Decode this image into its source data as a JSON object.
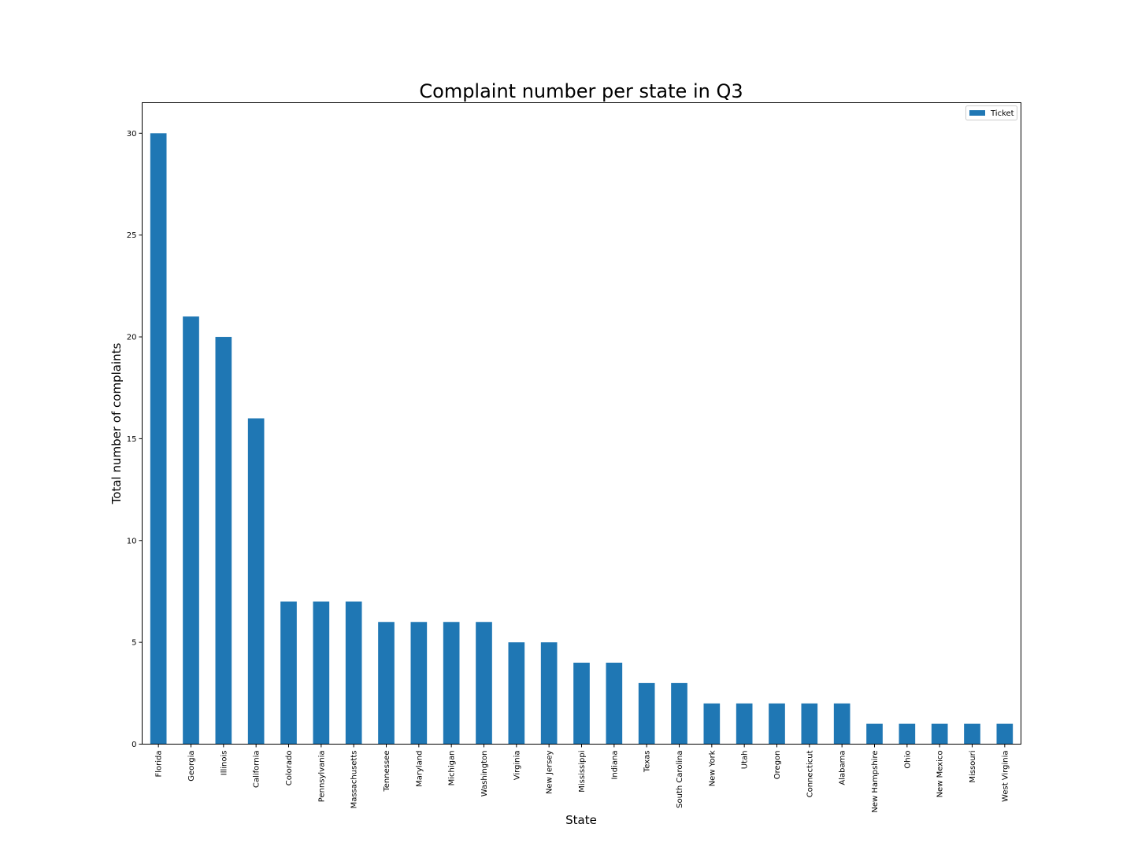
{
  "chart_data": {
    "type": "bar",
    "title": "Complaint number per state in Q3",
    "xlabel": "State",
    "ylabel": "Total number of complaints",
    "ylim": [
      0,
      31.5
    ],
    "yticks": [
      0,
      5,
      10,
      15,
      20,
      25,
      30
    ],
    "grid": false,
    "legend_position": "top-right",
    "categories": [
      "Florida",
      "Georgia",
      "Illinois",
      "California",
      "Colorado",
      "Pennsylvania",
      "Massachusetts",
      "Tennessee",
      "Maryland",
      "Michigan",
      "Washington",
      "Virginia",
      "New Jersey",
      "Mississippi",
      "Indiana",
      "Texas",
      "South Carolina",
      "New York",
      "Utah",
      "Oregon",
      "Connecticut",
      "Alabama",
      "New Hampshire",
      "Ohio",
      "New Mexico",
      "Missouri",
      "West Virginia"
    ],
    "series": [
      {
        "name": "Ticket",
        "color": "#1f77b4",
        "values": [
          30,
          21,
          20,
          16,
          7,
          7,
          7,
          6,
          6,
          6,
          6,
          5,
          5,
          4,
          4,
          3,
          3,
          2,
          2,
          2,
          2,
          2,
          1,
          1,
          1,
          1,
          1
        ]
      }
    ]
  }
}
